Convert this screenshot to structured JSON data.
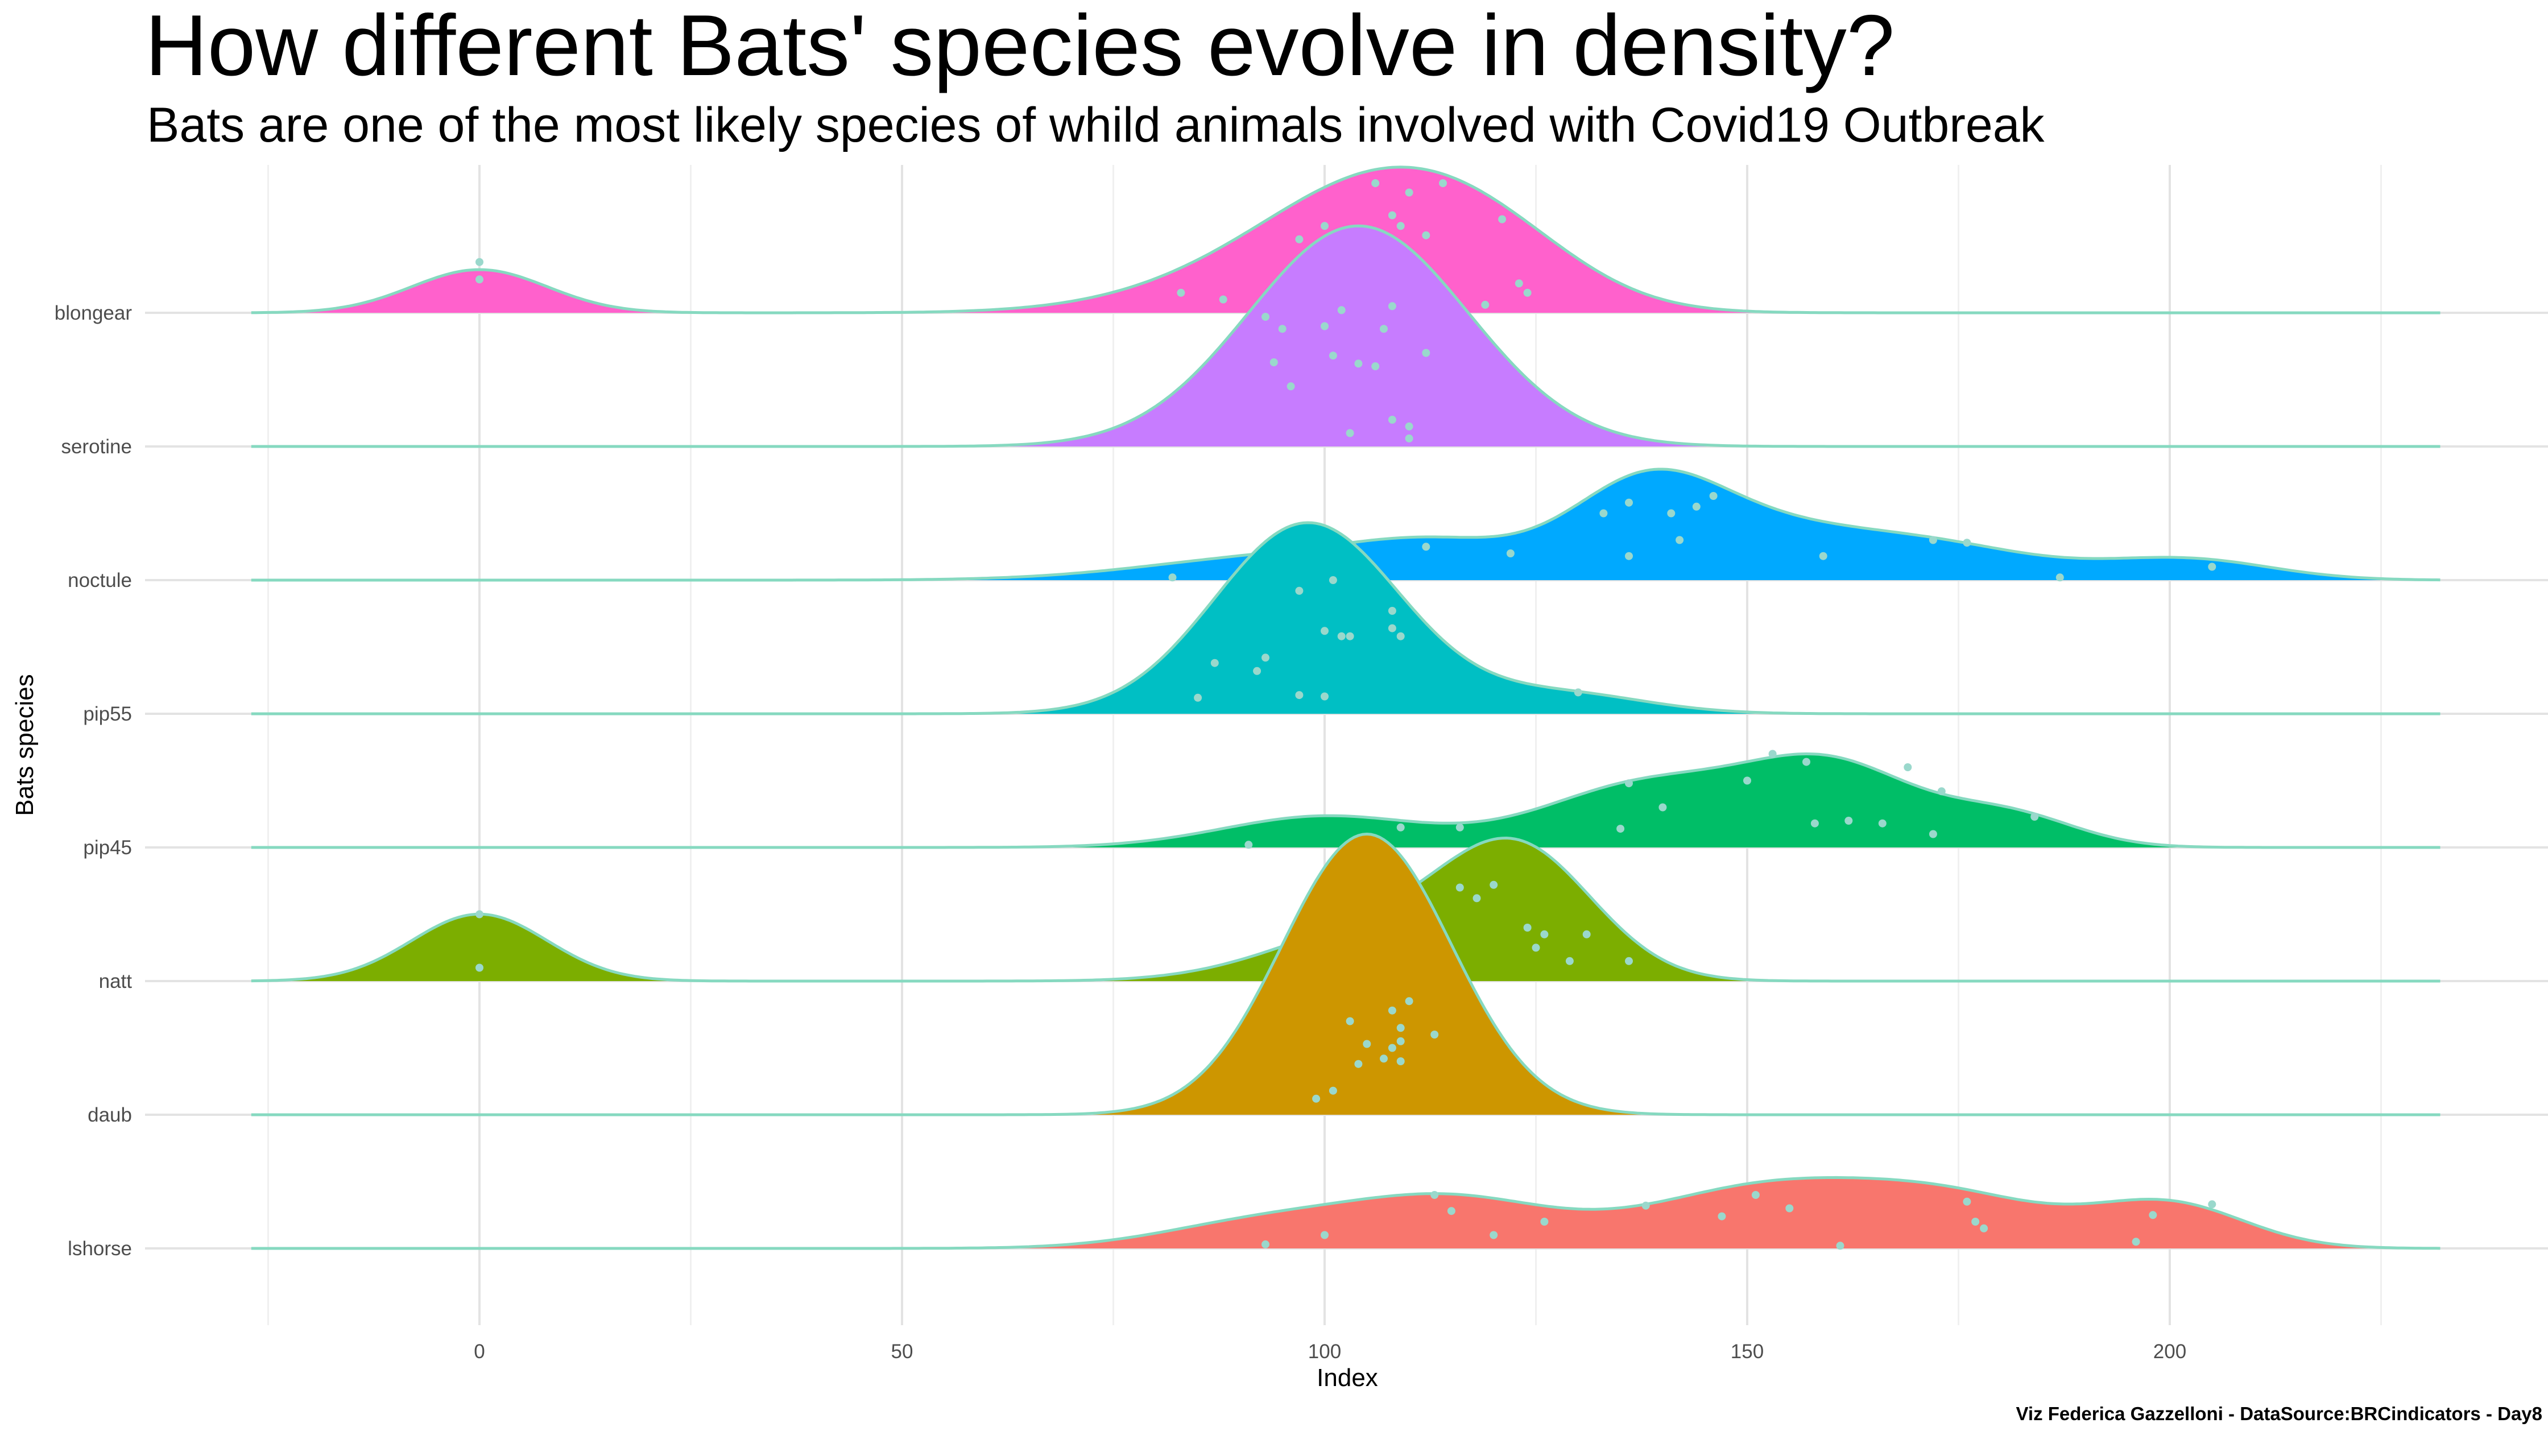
{
  "title": "How different Bats' species evolve in density?",
  "subtitle": "Bats are one of the most likely species of whild animals involved with Covid19 Outbreak",
  "caption": "Viz Federica Gazzelloni - DataSource:BRCindicators - Day8",
  "chart_data": {
    "type": "ridgeline",
    "xlabel": "Index",
    "ylabel": "Bats species",
    "xlim": [
      -27,
      232
    ],
    "xticks": [
      0,
      50,
      100,
      150,
      200
    ],
    "grid": true,
    "colors": {
      "outline": "#86d9c0",
      "point": "#9ad8cc",
      "grid_major": "#e3e3e3",
      "grid_minor": "#f0f0f0"
    },
    "series": [
      {
        "name": "blongear",
        "color": "#ff61cc",
        "height": 1.09,
        "components": [
          [
            0,
            8,
            0.38
          ],
          [
            100,
            16,
            0.55
          ],
          [
            110,
            13,
            0.72
          ],
          [
            122,
            10,
            0.22
          ]
        ],
        "points": [
          [
            0,
            0.38
          ],
          [
            0,
            0.25
          ],
          [
            83,
            0.15
          ],
          [
            88,
            0.1
          ],
          [
            97,
            0.55
          ],
          [
            100,
            0.65
          ],
          [
            103,
            0.6
          ],
          [
            106,
            0.97
          ],
          [
            108,
            0.73
          ],
          [
            109,
            0.65
          ],
          [
            110,
            0.9
          ],
          [
            112,
            0.58
          ],
          [
            114,
            0.97
          ],
          [
            119,
            0.06
          ],
          [
            121,
            0.7
          ],
          [
            123,
            0.22
          ],
          [
            124,
            0.15
          ]
        ]
      },
      {
        "name": "serotine",
        "color": "#c77cff",
        "height": 1.65,
        "components": [
          [
            104,
            13,
            1.65
          ]
        ],
        "points": [
          [
            93,
            0.97
          ],
          [
            94,
            0.63
          ],
          [
            95,
            0.88
          ],
          [
            96,
            0.45
          ],
          [
            100,
            0.9
          ],
          [
            101,
            0.68
          ],
          [
            102,
            1.02
          ],
          [
            103,
            0.1
          ],
          [
            104,
            0.62
          ],
          [
            106,
            0.6
          ],
          [
            107,
            0.88
          ],
          [
            108,
            1.05
          ],
          [
            108,
            0.2
          ],
          [
            110,
            0.06
          ],
          [
            110,
            0.15
          ],
          [
            112,
            0.7
          ]
        ]
      },
      {
        "name": "noctule",
        "color": "#00a9ff",
        "height": 0.83,
        "components": [
          [
            96,
            16,
            0.18
          ],
          [
            114,
            10,
            0.2
          ],
          [
            138,
            9,
            0.68
          ],
          [
            152,
            10,
            0.24
          ],
          [
            170,
            13,
            0.28
          ],
          [
            202,
            10,
            0.15
          ]
        ],
        "points": [
          [
            82,
            0.02
          ],
          [
            112,
            0.25
          ],
          [
            122,
            0.2
          ],
          [
            133,
            0.5
          ],
          [
            136,
            0.58
          ],
          [
            136,
            0.18
          ],
          [
            141,
            0.5
          ],
          [
            142,
            0.3
          ],
          [
            144,
            0.55
          ],
          [
            146,
            0.63
          ],
          [
            159,
            0.18
          ],
          [
            172,
            0.3
          ],
          [
            176,
            0.28
          ],
          [
            187,
            0.02
          ],
          [
            205,
            0.1
          ]
        ]
      },
      {
        "name": "pip55",
        "color": "#00bfc4",
        "height": 1.43,
        "components": [
          [
            98,
            11,
            1.43
          ],
          [
            128,
            10,
            0.15
          ]
        ],
        "points": [
          [
            85,
            0.12
          ],
          [
            87,
            0.38
          ],
          [
            92,
            0.32
          ],
          [
            93,
            0.42
          ],
          [
            97,
            0.14
          ],
          [
            97,
            0.92
          ],
          [
            100,
            0.13
          ],
          [
            100,
            0.62
          ],
          [
            101,
            1.0
          ],
          [
            102,
            0.58
          ],
          [
            103,
            0.58
          ],
          [
            108,
            0.64
          ],
          [
            108,
            0.77
          ],
          [
            109,
            0.58
          ],
          [
            130,
            0.16
          ]
        ]
      },
      {
        "name": "pip45",
        "color": "#00be67",
        "height": 0.7,
        "components": [
          [
            100,
            12,
            0.25
          ],
          [
            138,
            12,
            0.5
          ],
          [
            160,
            10,
            0.63
          ],
          [
            181,
            8,
            0.25
          ]
        ],
        "points": [
          [
            91,
            0.02
          ],
          [
            109,
            0.15
          ],
          [
            116,
            0.15
          ],
          [
            135,
            0.14
          ],
          [
            136,
            0.48
          ],
          [
            140,
            0.3
          ],
          [
            150,
            0.5
          ],
          [
            153,
            0.7
          ],
          [
            157,
            0.64
          ],
          [
            158,
            0.18
          ],
          [
            162,
            0.2
          ],
          [
            166,
            0.18
          ],
          [
            169,
            0.6
          ],
          [
            172,
            0.1
          ],
          [
            173,
            0.42
          ],
          [
            184,
            0.23
          ]
        ]
      },
      {
        "name": "natt",
        "color": "#7cae00",
        "height": 1.07,
        "components": [
          [
            0,
            8,
            0.52
          ],
          [
            106,
            12,
            0.4
          ],
          [
            123,
            9,
            0.95
          ]
        ],
        "points": [
          [
            0,
            0.5
          ],
          [
            0,
            0.1
          ],
          [
            98,
            0.25
          ],
          [
            100,
            0.3
          ],
          [
            106,
            1.0
          ],
          [
            116,
            0.7
          ],
          [
            118,
            0.62
          ],
          [
            120,
            0.72
          ],
          [
            124,
            0.4
          ],
          [
            125,
            0.25
          ],
          [
            126,
            0.35
          ],
          [
            129,
            0.15
          ],
          [
            131,
            0.35
          ],
          [
            136,
            0.15
          ]
        ]
      },
      {
        "name": "daub",
        "color": "#cd9600",
        "height": 2.1,
        "components": [
          [
            105,
            10,
            2.1
          ]
        ],
        "points": [
          [
            99,
            0.12
          ],
          [
            101,
            0.18
          ],
          [
            103,
            0.7
          ],
          [
            104,
            0.38
          ],
          [
            105,
            0.53
          ],
          [
            107,
            0.42
          ],
          [
            108,
            0.5
          ],
          [
            108,
            0.78
          ],
          [
            109,
            0.55
          ],
          [
            109,
            0.4
          ],
          [
            109,
            0.65
          ],
          [
            110,
            0.85
          ],
          [
            113,
            0.6
          ]
        ]
      },
      {
        "name": "lshorse",
        "color": "#f8766d",
        "height": 0.53,
        "components": [
          [
            93,
            12,
            0.22
          ],
          [
            115,
            12,
            0.4
          ],
          [
            152,
            14,
            0.5
          ],
          [
            175,
            12,
            0.37
          ],
          [
            200,
            9,
            0.36
          ]
        ],
        "points": [
          [
            93,
            0.03
          ],
          [
            100,
            0.1
          ],
          [
            113,
            0.4
          ],
          [
            115,
            0.28
          ],
          [
            120,
            0.1
          ],
          [
            126,
            0.2
          ],
          [
            138,
            0.32
          ],
          [
            147,
            0.24
          ],
          [
            151,
            0.4
          ],
          [
            155,
            0.3
          ],
          [
            161,
            0.02
          ],
          [
            176,
            0.35
          ],
          [
            177,
            0.2
          ],
          [
            178,
            0.15
          ],
          [
            196,
            0.05
          ],
          [
            198,
            0.25
          ],
          [
            205,
            0.33
          ]
        ]
      }
    ]
  }
}
